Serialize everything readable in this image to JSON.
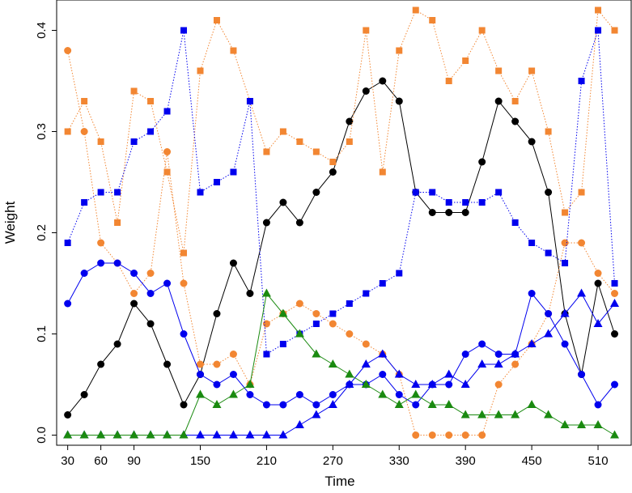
{
  "chart_data": {
    "type": "scatter",
    "xlabel": "Time",
    "ylabel": "Weight",
    "xlim": [
      20,
      540
    ],
    "ylim": [
      -0.01,
      0.43
    ],
    "xticks": [
      "30",
      "60",
      "90",
      "150",
      "210",
      "270",
      "330",
      "390",
      "450",
      "510"
    ],
    "yticks": [
      "0.0",
      "0.1",
      "0.2",
      "0.3",
      "0.4"
    ],
    "grid": false,
    "legend": "none",
    "series": [
      {
        "color": "#000000",
        "marker": "circle",
        "line": "solid",
        "x": [
          30,
          45,
          60,
          75,
          90,
          105,
          120,
          135,
          150,
          165,
          180,
          195,
          210,
          225,
          240,
          255,
          270,
          285,
          300,
          315,
          330,
          345,
          360,
          375,
          390,
          405,
          420,
          435,
          450,
          465,
          480,
          495,
          510,
          525
        ],
        "y": [
          0.02,
          0.04,
          0.07,
          0.09,
          0.13,
          0.11,
          0.07,
          0.03,
          0.06,
          0.12,
          0.17,
          0.14,
          0.21,
          0.23,
          0.21,
          0.24,
          0.26,
          0.31,
          0.34,
          0.35,
          0.33,
          0.24,
          0.22,
          0.22,
          0.22,
          0.27,
          0.33,
          0.31,
          0.29,
          0.24,
          0.12,
          0.06,
          0.15,
          0.1
        ]
      },
      {
        "color": "#f28632",
        "marker": "circle",
        "line": "dotted",
        "x": [
          30,
          45,
          60,
          75,
          90,
          105,
          120,
          135,
          150,
          165,
          180,
          195,
          210,
          225,
          240,
          255,
          270,
          285,
          300,
          315,
          330,
          345,
          360,
          375,
          390,
          405,
          420,
          435,
          450,
          465,
          480,
          495,
          510,
          525
        ],
        "y": [
          0.38,
          0.3,
          0.19,
          0.17,
          0.14,
          0.16,
          0.28,
          0.15,
          0.07,
          0.07,
          0.08,
          0.05,
          0.11,
          0.12,
          0.13,
          0.12,
          0.11,
          0.1,
          0.09,
          0.08,
          0.06,
          0.0,
          0.0,
          0.0,
          0.0,
          0.0,
          0.05,
          0.07,
          0.09,
          0.12,
          0.19,
          0.19,
          0.16,
          0.14
        ]
      },
      {
        "color": "#f28632",
        "marker": "square",
        "line": "dotted",
        "x": [
          30,
          45,
          60,
          75,
          90,
          105,
          120,
          135,
          150,
          165,
          180,
          195,
          210,
          225,
          240,
          255,
          270,
          285,
          300,
          315,
          330,
          345,
          360,
          375,
          390,
          405,
          420,
          435,
          450,
          465,
          480,
          495,
          510,
          525
        ],
        "y": [
          0.3,
          0.33,
          0.29,
          0.21,
          0.34,
          0.33,
          0.26,
          0.18,
          0.36,
          0.41,
          0.38,
          0.33,
          0.28,
          0.3,
          0.29,
          0.28,
          0.27,
          0.29,
          0.4,
          0.26,
          0.38,
          0.42,
          0.41,
          0.35,
          0.37,
          0.4,
          0.36,
          0.33,
          0.36,
          0.3,
          0.22,
          0.24,
          0.42,
          0.4
        ]
      },
      {
        "color": "#0000ee",
        "marker": "circle",
        "line": "solid",
        "x": [
          30,
          45,
          60,
          75,
          90,
          105,
          120,
          135,
          150,
          165,
          180,
          195,
          210,
          225,
          240,
          255,
          270,
          285,
          300,
          315,
          330,
          345,
          360,
          375,
          390,
          405,
          420,
          435,
          450,
          465,
          480,
          495,
          510,
          525
        ],
        "y": [
          0.13,
          0.16,
          0.17,
          0.17,
          0.16,
          0.14,
          0.15,
          0.1,
          0.06,
          0.05,
          0.06,
          0.04,
          0.03,
          0.03,
          0.04,
          0.03,
          0.04,
          0.05,
          0.05,
          0.06,
          0.04,
          0.03,
          0.05,
          0.05,
          0.08,
          0.09,
          0.08,
          0.08,
          0.14,
          0.12,
          0.09,
          0.06,
          0.03,
          0.05
        ]
      },
      {
        "color": "#0000ee",
        "marker": "square",
        "line": "dotted",
        "x": [
          30,
          45,
          60,
          75,
          90,
          105,
          120,
          135,
          150,
          165,
          180,
          195,
          210,
          225,
          240,
          255,
          270,
          285,
          300,
          315,
          330,
          345,
          360,
          375,
          390,
          405,
          420,
          435,
          450,
          465,
          480,
          495,
          510,
          525
        ],
        "y": [
          0.19,
          0.23,
          0.24,
          0.24,
          0.29,
          0.3,
          0.32,
          0.4,
          0.24,
          0.25,
          0.26,
          0.33,
          0.08,
          0.09,
          0.1,
          0.11,
          0.12,
          0.13,
          0.14,
          0.15,
          0.16,
          0.24,
          0.24,
          0.23,
          0.23,
          0.23,
          0.24,
          0.21,
          0.19,
          0.18,
          0.17,
          0.35,
          0.4,
          0.15
        ]
      },
      {
        "color": "#0000ee",
        "marker": "triangle",
        "line": "solid",
        "x": [
          30,
          45,
          60,
          75,
          90,
          105,
          120,
          135,
          150,
          165,
          180,
          195,
          210,
          225,
          240,
          255,
          270,
          285,
          300,
          315,
          330,
          345,
          360,
          375,
          390,
          405,
          420,
          435,
          450,
          465,
          480,
          495,
          510,
          525
        ],
        "y": [
          0.0,
          0.0,
          0.0,
          0.0,
          0.0,
          0.0,
          0.0,
          0.0,
          0.0,
          0.0,
          0.0,
          0.0,
          0.0,
          0.0,
          0.01,
          0.02,
          0.03,
          0.05,
          0.07,
          0.08,
          0.06,
          0.05,
          0.05,
          0.06,
          0.05,
          0.07,
          0.07,
          0.08,
          0.09,
          0.1,
          0.12,
          0.14,
          0.11,
          0.13
        ]
      },
      {
        "color": "#1a8a10",
        "marker": "triangle",
        "line": "solid",
        "x": [
          30,
          45,
          60,
          75,
          90,
          105,
          120,
          135,
          150,
          165,
          180,
          195,
          210,
          225,
          240,
          255,
          270,
          285,
          300,
          315,
          330,
          345,
          360,
          375,
          390,
          405,
          420,
          435,
          450,
          465,
          480,
          495,
          510,
          525
        ],
        "y": [
          0.0,
          0.0,
          0.0,
          0.0,
          0.0,
          0.0,
          0.0,
          0.0,
          0.04,
          0.03,
          0.04,
          0.05,
          0.14,
          0.12,
          0.1,
          0.08,
          0.07,
          0.06,
          0.05,
          0.04,
          0.03,
          0.04,
          0.03,
          0.03,
          0.02,
          0.02,
          0.02,
          0.02,
          0.03,
          0.02,
          0.01,
          0.01,
          0.01,
          0.0
        ]
      }
    ]
  }
}
